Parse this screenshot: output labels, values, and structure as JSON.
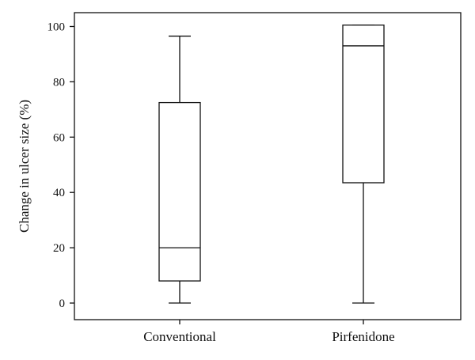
{
  "chart_data": {
    "type": "box",
    "title": "",
    "xlabel": "",
    "ylabel": "Change in ulcer size (%)",
    "ylim": [
      -6,
      105
    ],
    "yticks": [
      0,
      20,
      40,
      60,
      80,
      100
    ],
    "categories": [
      "Conventional",
      "Pirfenidone"
    ],
    "series": [
      {
        "category": "Conventional",
        "min": 0,
        "q1": 8,
        "median": 20,
        "q3": 72.5,
        "max": 96.5
      },
      {
        "category": "Pirfenidone",
        "min": 0,
        "q1": 43.5,
        "median": 93,
        "q3": 100.5,
        "max": 100.5
      }
    ],
    "grid": false,
    "legend": "none",
    "colors": {
      "stroke": "#111111",
      "box_fill": "#ffffff"
    }
  }
}
